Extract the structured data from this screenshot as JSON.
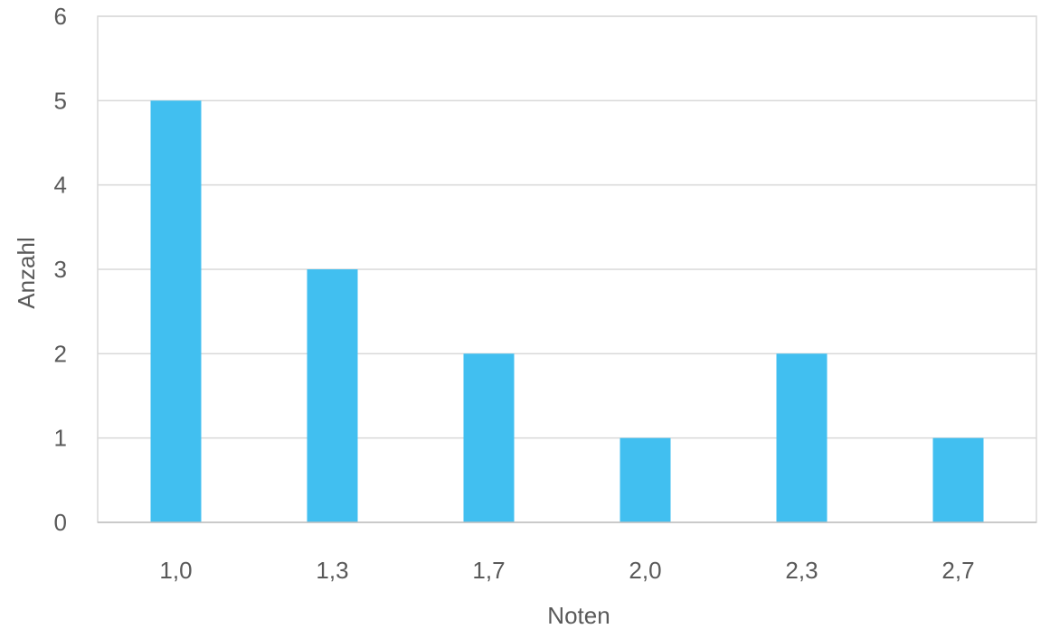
{
  "chart_data": {
    "type": "bar",
    "title": "",
    "xlabel": "Noten",
    "ylabel": "Anzahl",
    "categories": [
      "1,0",
      "1,3",
      "1,7",
      "2,0",
      "2,3",
      "2,7"
    ],
    "series": [
      {
        "values": [
          5,
          3,
          2,
          1,
          2,
          1
        ]
      }
    ],
    "ylim": [
      0,
      6
    ],
    "yticks": [
      0,
      1,
      2,
      3,
      4,
      5,
      6
    ],
    "grid": true,
    "legend": "none",
    "colors": {
      "bar": "#41bff0",
      "grid": "#d9d9d9",
      "axis": "#bfbfbf",
      "text": "#595959"
    }
  }
}
